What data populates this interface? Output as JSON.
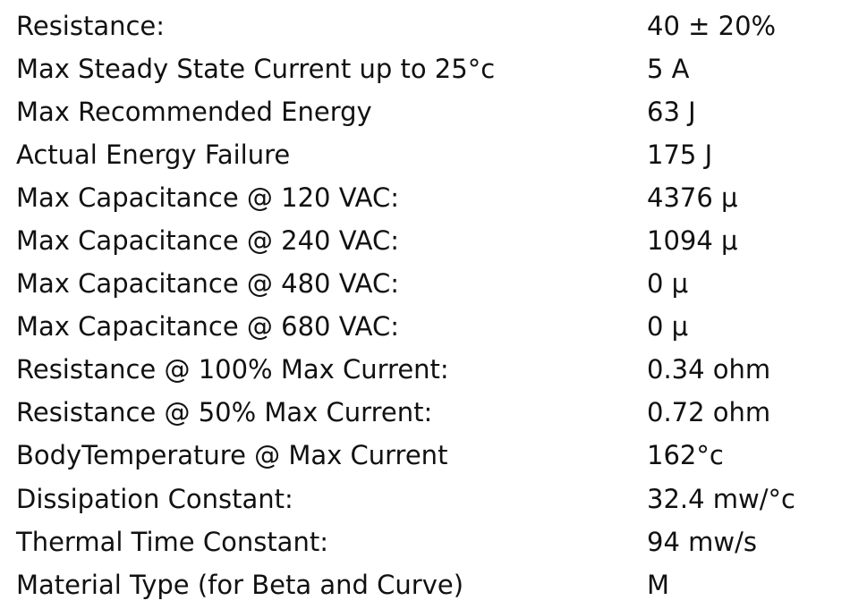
{
  "specs": {
    "rows": [
      {
        "label": "Resistance:",
        "value": "40 ± 20%"
      },
      {
        "label": "Max Steady State Current up to 25°c",
        "value": "5 A"
      },
      {
        "label": "Max Recommended Energy",
        "value": "63 J"
      },
      {
        "label": "Actual Energy Failure",
        "value": "175 J"
      },
      {
        "label": "Max Capacitance @ 120 VAC:",
        "value": "4376 μ"
      },
      {
        "label": "Max Capacitance @ 240 VAC:",
        "value": "1094 μ"
      },
      {
        "label": "Max Capacitance @ 480 VAC:",
        "value": "0 μ"
      },
      {
        "label": "Max Capacitance @ 680 VAC:",
        "value": "0 μ"
      },
      {
        "label": "Resistance @ 100% Max Current:",
        "value": "0.34 ohm"
      },
      {
        "label": "Resistance @ 50% Max Current:",
        "value": "0.72 ohm"
      },
      {
        "label": "BodyTemperature @ Max Current",
        "value": "162°c"
      },
      {
        "label": "Dissipation Constant:",
        "value": "32.4 mw/°c"
      },
      {
        "label": "Thermal Time Constant:",
        "value": "94 mw/s"
      },
      {
        "label": "Material Type (for Beta and Curve)",
        "value": "M"
      }
    ]
  }
}
